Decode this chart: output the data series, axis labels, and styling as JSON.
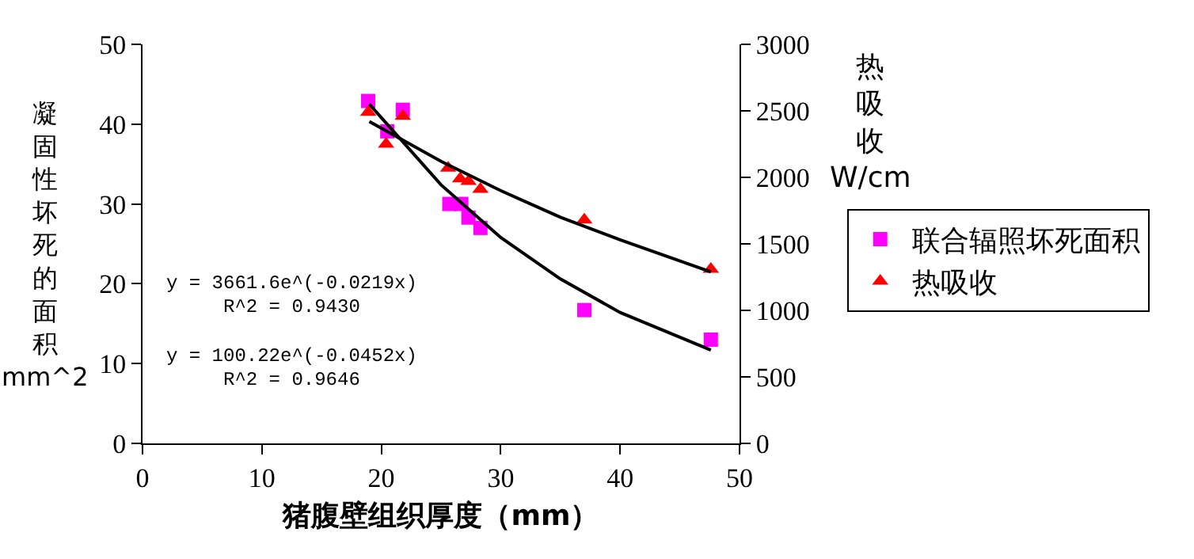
{
  "chart_data": {
    "type": "scatter",
    "xlabel": "猪腹壁组织厚度（mm）",
    "ylabel": "凝固性坏死的面积mm^2",
    "y2label": "热吸收W/cm",
    "xlim": [
      0,
      50
    ],
    "xticks": [
      0,
      10,
      20,
      30,
      40,
      50
    ],
    "ylim": [
      0,
      50
    ],
    "yticks": [
      0,
      10,
      20,
      30,
      40,
      50
    ],
    "y2lim": [
      0,
      3000
    ],
    "y2ticks": [
      0,
      500,
      1000,
      1500,
      2000,
      2500,
      3000
    ],
    "grid": false,
    "legend": "right",
    "annotations": [
      "y = 3661.6e^(-0.0219x)",
      "R^2 = 0.9430",
      "y = 100.22e^(-0.0452x)",
      "R^2 = 0.9646"
    ],
    "series": [
      {
        "name": "联合辐照坏死面积",
        "color": "#ff00ff",
        "marker": "square",
        "x": [
          18.9,
          20.5,
          21.8,
          25.7,
          26.7,
          27.3,
          28.3,
          37.0,
          47.6
        ],
        "values": [
          42.9,
          39.1,
          41.8,
          30.0,
          30.0,
          28.3,
          27.0,
          16.7,
          13.0
        ]
      },
      {
        "name": "热吸收",
        "color": "#ff0000",
        "marker": "triangle",
        "axis": "y2",
        "x": [
          18.9,
          20.4,
          21.8,
          25.6,
          26.6,
          27.3,
          28.3,
          37.0,
          47.6
        ],
        "values": [
          2490,
          2250,
          2460,
          2070,
          1990,
          1970,
          1910,
          1680,
          1310
        ]
      },
      {
        "type": "line",
        "color": "#000000",
        "marker": "none",
        "x": [
          19,
          25,
          30,
          35,
          40,
          47.6
        ],
        "values": [
          42.5,
          32.4,
          25.8,
          20.6,
          16.4,
          11.7
        ]
      },
      {
        "type": "line",
        "color": "#000000",
        "marker": "none",
        "axis": "y2",
        "x": [
          19,
          25,
          30,
          35,
          40,
          47.6
        ],
        "values": [
          2420,
          2120,
          1900,
          1700,
          1530,
          1290
        ]
      }
    ]
  }
}
